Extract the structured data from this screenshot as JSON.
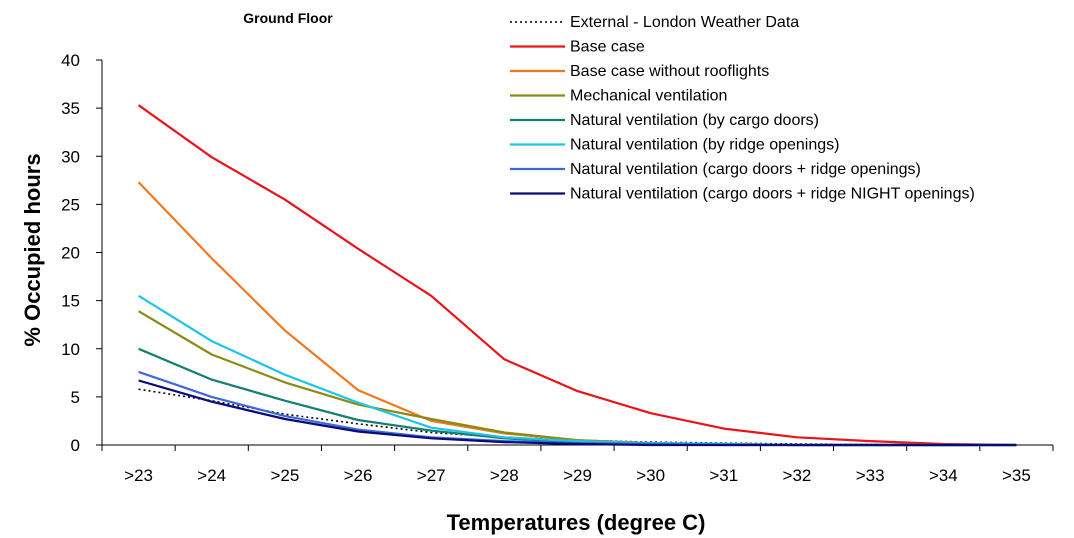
{
  "chart_data": {
    "type": "line",
    "title": "Ground Floor",
    "xlabel": "Temperatures (degree C)",
    "ylabel": "% Occupied hours",
    "categories": [
      ">23",
      ">24",
      ">25",
      ">26",
      ">27",
      ">28",
      ">29",
      ">30",
      ">31",
      ">32",
      ">33",
      ">34",
      ">35"
    ],
    "ylim": [
      0,
      40
    ],
    "yticks": [
      0,
      5,
      10,
      15,
      20,
      25,
      30,
      35,
      40
    ],
    "grid": false,
    "legend_position": "top-right",
    "series": [
      {
        "name": "External - London Weather Data",
        "color": "#000000",
        "dash": "dotted",
        "values": [
          5.8,
          4.6,
          3.2,
          2.2,
          1.3,
          0.8,
          0.5,
          0.3,
          0.2,
          0.1,
          0.05,
          0.0,
          0.0
        ]
      },
      {
        "name": "Base case",
        "color": "#e8141a",
        "dash": "solid",
        "values": [
          35.3,
          29.9,
          25.5,
          20.4,
          15.5,
          8.9,
          5.6,
          3.3,
          1.7,
          0.8,
          0.4,
          0.1,
          0.0
        ]
      },
      {
        "name": "Base case without rooflights",
        "color": "#f07820",
        "dash": "solid",
        "values": [
          27.3,
          19.4,
          11.9,
          5.7,
          2.5,
          1.2,
          0.5,
          0.2,
          0.1,
          0.0,
          0.0,
          0.0,
          0.0
        ]
      },
      {
        "name": "Mechanical ventilation",
        "color": "#8a8a14",
        "dash": "solid",
        "values": [
          13.9,
          9.4,
          6.5,
          4.2,
          2.7,
          1.3,
          0.5,
          0.2,
          0.1,
          0.0,
          0.0,
          0.0,
          0.0
        ]
      },
      {
        "name": "Natural ventilation (by cargo doors)",
        "color": "#157f72",
        "dash": "solid",
        "values": [
          10.0,
          6.8,
          4.6,
          2.6,
          1.5,
          0.7,
          0.3,
          0.1,
          0.05,
          0.0,
          0.0,
          0.0,
          0.0
        ]
      },
      {
        "name": "Natural ventilation (by ridge openings)",
        "color": "#1fc3e8",
        "dash": "solid",
        "values": [
          15.5,
          10.8,
          7.3,
          4.4,
          1.8,
          0.8,
          0.4,
          0.2,
          0.1,
          0.0,
          0.0,
          0.0,
          0.0
        ]
      },
      {
        "name": "Natural ventilation (cargo doors + ridge openings)",
        "color": "#3b6ad4",
        "dash": "solid",
        "values": [
          7.6,
          5.0,
          3.0,
          1.6,
          0.8,
          0.4,
          0.2,
          0.1,
          0.0,
          0.0,
          0.0,
          0.0,
          0.0
        ]
      },
      {
        "name": "Natural ventilation (cargo doors + ridge NIGHT openings)",
        "color": "#0a0a78",
        "dash": "solid",
        "values": [
          6.7,
          4.5,
          2.7,
          1.4,
          0.7,
          0.3,
          0.1,
          0.0,
          0.0,
          0.0,
          0.0,
          0.0,
          0.0
        ]
      }
    ]
  }
}
